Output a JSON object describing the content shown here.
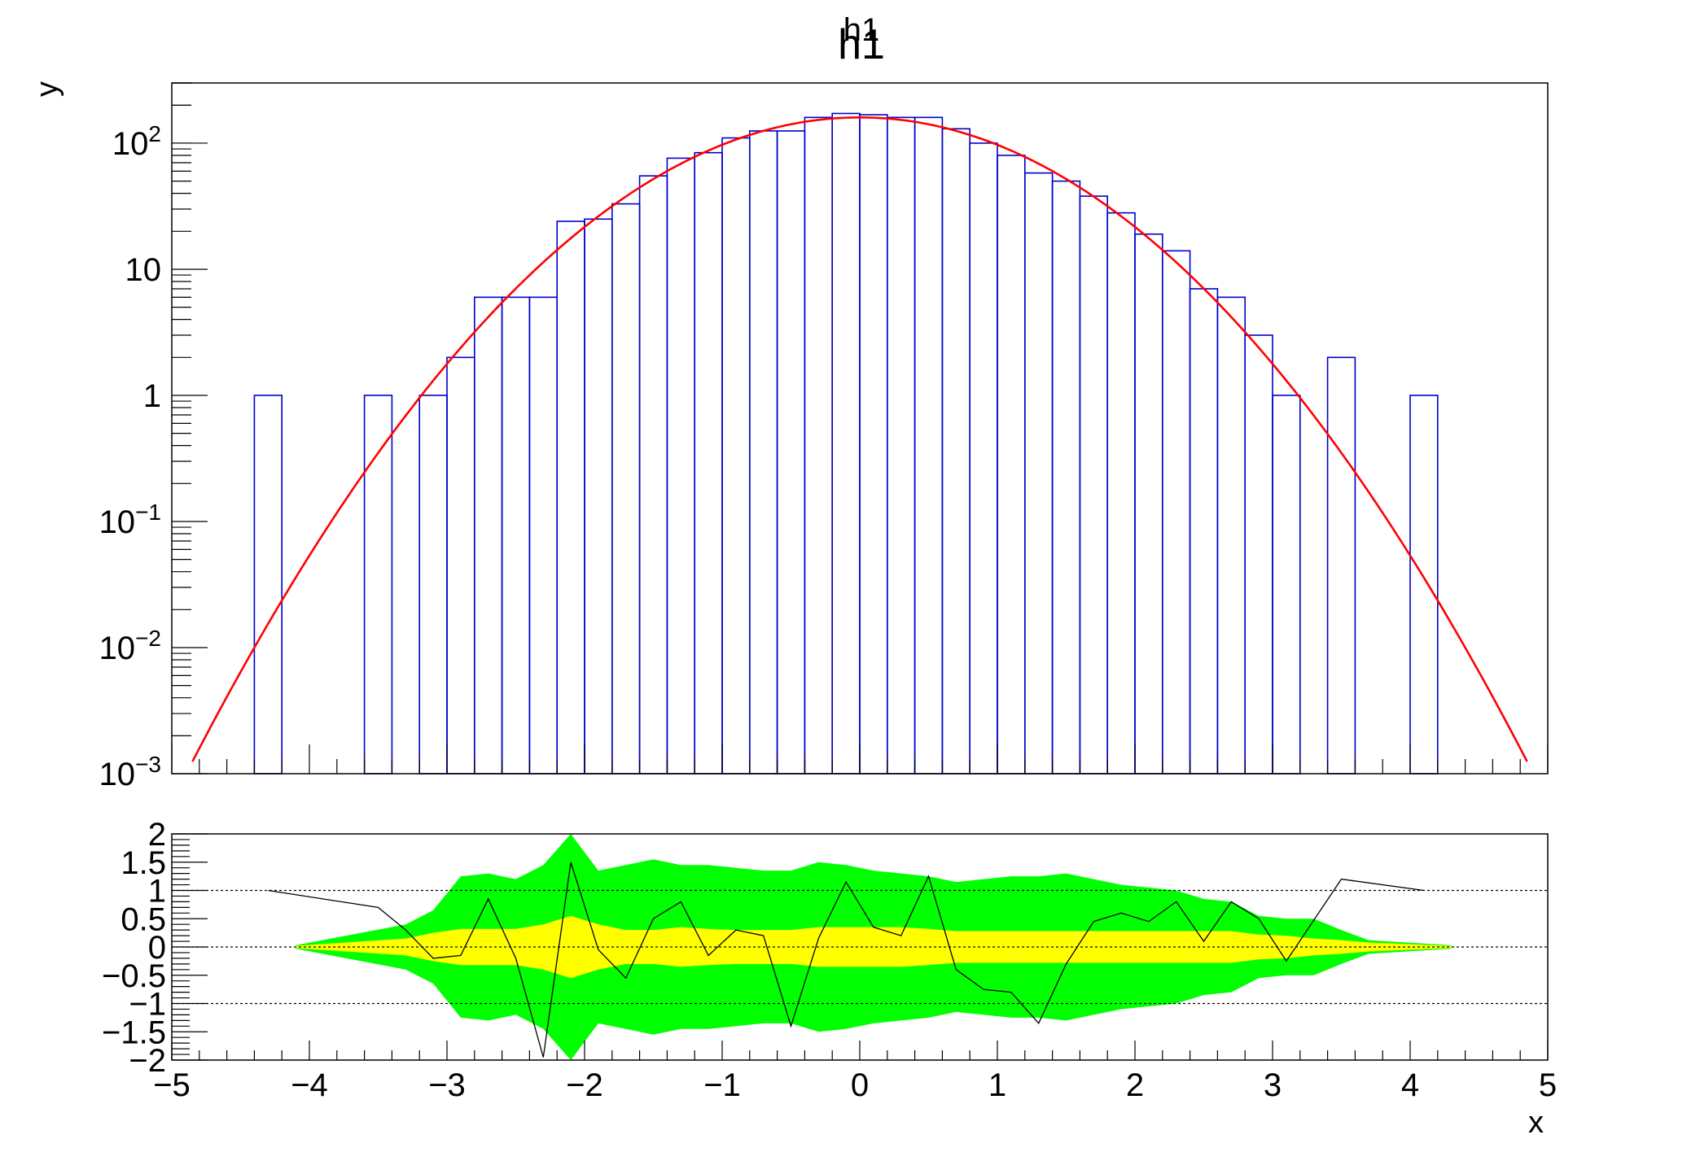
{
  "window": {
    "title_overlay": "h1",
    "title": "h1"
  },
  "chart_data": [
    {
      "type": "histogram",
      "title": "h1",
      "ylabel": "y",
      "xlabel": "x",
      "xlim": [
        -5,
        5
      ],
      "ylim": [
        0.001,
        300
      ],
      "yscale": "log",
      "grid": false,
      "y_tick_labels": [
        {
          "value": 0.001,
          "base": "10",
          "exp": "−3"
        },
        {
          "value": 0.01,
          "base": "10",
          "exp": "−2"
        },
        {
          "value": 0.1,
          "base": "10",
          "exp": "−1"
        },
        {
          "value": 1,
          "base": "1",
          "exp": ""
        },
        {
          "value": 10,
          "base": "10",
          "exp": ""
        },
        {
          "value": 100,
          "base": "10",
          "exp": "2"
        }
      ],
      "histogram": {
        "name": "h1",
        "color": "#0000cc",
        "bin_width": 0.2,
        "bins": [
          {
            "x": -4.4,
            "y": 1
          },
          {
            "x": -3.6,
            "y": 1
          },
          {
            "x": -3.2,
            "y": 1
          },
          {
            "x": -3.0,
            "y": 2
          },
          {
            "x": -2.8,
            "y": 6
          },
          {
            "x": -2.6,
            "y": 6
          },
          {
            "x": -2.4,
            "y": 6
          },
          {
            "x": -2.2,
            "y": 24
          },
          {
            "x": -2.0,
            "y": 25
          },
          {
            "x": -1.8,
            "y": 33
          },
          {
            "x": -1.6,
            "y": 55
          },
          {
            "x": -1.4,
            "y": 76
          },
          {
            "x": -1.2,
            "y": 84
          },
          {
            "x": -1.0,
            "y": 110
          },
          {
            "x": -0.8,
            "y": 125
          },
          {
            "x": -0.6,
            "y": 125
          },
          {
            "x": -0.4,
            "y": 160
          },
          {
            "x": -0.2,
            "y": 172
          },
          {
            "x": 0.0,
            "y": 168
          },
          {
            "x": 0.2,
            "y": 160
          },
          {
            "x": 0.4,
            "y": 160
          },
          {
            "x": 0.6,
            "y": 130
          },
          {
            "x": 0.8,
            "y": 100
          },
          {
            "x": 1.0,
            "y": 80
          },
          {
            "x": 1.2,
            "y": 58
          },
          {
            "x": 1.4,
            "y": 50
          },
          {
            "x": 1.6,
            "y": 38
          },
          {
            "x": 1.8,
            "y": 28
          },
          {
            "x": 2.0,
            "y": 19
          },
          {
            "x": 2.2,
            "y": 14
          },
          {
            "x": 2.4,
            "y": 7
          },
          {
            "x": 2.6,
            "y": 6
          },
          {
            "x": 2.8,
            "y": 3
          },
          {
            "x": 3.0,
            "y": 1
          },
          {
            "x": 3.4,
            "y": 2
          },
          {
            "x": 4.0,
            "y": 1
          }
        ]
      },
      "fit": {
        "name": "gaus",
        "color": "#ff0000",
        "amplitude": 160,
        "mean": 0.0,
        "sigma": 1.0,
        "x_range": [
          -4.85,
          4.85
        ]
      }
    },
    {
      "type": "residual_band",
      "xlabel": "x",
      "xlim": [
        -5,
        5
      ],
      "ylim": [
        -2,
        2
      ],
      "y_tick_labels": [
        "2",
        "1.5",
        "1",
        "0.5",
        "0",
        "−0.5",
        "−1",
        "−1.5",
        "−2"
      ],
      "x_tick_labels": [
        "−5",
        "−4",
        "−3",
        "−2",
        "−1",
        "0",
        "1",
        "2",
        "3",
        "4",
        "5"
      ],
      "reference_lines": [
        1,
        0,
        -1
      ],
      "sigma2_band_color": "#00ff00",
      "sigma1_band_color": "#ffff00",
      "residual_color": "#000000",
      "bands": [
        {
          "x": -4.1,
          "s1": 0.02,
          "s2": 0.03
        },
        {
          "x": -3.3,
          "s1": 0.15,
          "s2": 0.4
        },
        {
          "x": -3.1,
          "s1": 0.25,
          "s2": 0.65
        },
        {
          "x": -2.9,
          "s1": 0.32,
          "s2": 1.25
        },
        {
          "x": -2.7,
          "s1": 0.32,
          "s2": 1.3
        },
        {
          "x": -2.5,
          "s1": 0.32,
          "s2": 1.2
        },
        {
          "x": -2.3,
          "s1": 0.4,
          "s2": 1.45
        },
        {
          "x": -2.1,
          "s1": 0.55,
          "s2": 2.1
        },
        {
          "x": -1.9,
          "s1": 0.4,
          "s2": 1.35
        },
        {
          "x": -1.7,
          "s1": 0.3,
          "s2": 1.45
        },
        {
          "x": -1.5,
          "s1": 0.3,
          "s2": 1.55
        },
        {
          "x": -1.3,
          "s1": 0.35,
          "s2": 1.45
        },
        {
          "x": -1.1,
          "s1": 0.32,
          "s2": 1.45
        },
        {
          "x": -0.9,
          "s1": 0.3,
          "s2": 1.4
        },
        {
          "x": -0.7,
          "s1": 0.3,
          "s2": 1.35
        },
        {
          "x": -0.5,
          "s1": 0.3,
          "s2": 1.35
        },
        {
          "x": -0.3,
          "s1": 0.35,
          "s2": 1.5
        },
        {
          "x": -0.1,
          "s1": 0.35,
          "s2": 1.45
        },
        {
          "x": 0.1,
          "s1": 0.35,
          "s2": 1.35
        },
        {
          "x": 0.3,
          "s1": 0.35,
          "s2": 1.3
        },
        {
          "x": 0.5,
          "s1": 0.32,
          "s2": 1.25
        },
        {
          "x": 0.7,
          "s1": 0.28,
          "s2": 1.15
        },
        {
          "x": 0.9,
          "s1": 0.28,
          "s2": 1.2
        },
        {
          "x": 1.1,
          "s1": 0.28,
          "s2": 1.25
        },
        {
          "x": 1.3,
          "s1": 0.28,
          "s2": 1.25
        },
        {
          "x": 1.5,
          "s1": 0.28,
          "s2": 1.3
        },
        {
          "x": 1.7,
          "s1": 0.28,
          "s2": 1.2
        },
        {
          "x": 1.9,
          "s1": 0.28,
          "s2": 1.1
        },
        {
          "x": 2.1,
          "s1": 0.28,
          "s2": 1.05
        },
        {
          "x": 2.3,
          "s1": 0.28,
          "s2": 1.0
        },
        {
          "x": 2.5,
          "s1": 0.28,
          "s2": 0.85
        },
        {
          "x": 2.7,
          "s1": 0.28,
          "s2": 0.8
        },
        {
          "x": 2.9,
          "s1": 0.22,
          "s2": 0.55
        },
        {
          "x": 3.1,
          "s1": 0.2,
          "s2": 0.5
        },
        {
          "x": 3.3,
          "s1": 0.15,
          "s2": 0.5
        },
        {
          "x": 3.5,
          "s1": 0.12,
          "s2": 0.3
        },
        {
          "x": 3.7,
          "s1": 0.08,
          "s2": 0.12
        },
        {
          "x": 4.3,
          "s1": 0.02,
          "s2": 0.03
        }
      ],
      "residuals": [
        {
          "x": -4.3,
          "y": 1.0
        },
        {
          "x": -3.5,
          "y": 0.7
        },
        {
          "x": -3.3,
          "y": 0.3
        },
        {
          "x": -3.1,
          "y": -0.2
        },
        {
          "x": -2.9,
          "y": -0.15
        },
        {
          "x": -2.7,
          "y": 0.85
        },
        {
          "x": -2.5,
          "y": -0.2
        },
        {
          "x": -2.3,
          "y": -1.95
        },
        {
          "x": -2.1,
          "y": 1.5
        },
        {
          "x": -1.9,
          "y": -0.05
        },
        {
          "x": -1.7,
          "y": -0.55
        },
        {
          "x": -1.5,
          "y": 0.5
        },
        {
          "x": -1.3,
          "y": 0.8
        },
        {
          "x": -1.1,
          "y": -0.15
        },
        {
          "x": -0.9,
          "y": 0.3
        },
        {
          "x": -0.7,
          "y": 0.2
        },
        {
          "x": -0.5,
          "y": -1.4
        },
        {
          "x": -0.3,
          "y": 0.15
        },
        {
          "x": -0.1,
          "y": 1.15
        },
        {
          "x": 0.1,
          "y": 0.35
        },
        {
          "x": 0.3,
          "y": 0.2
        },
        {
          "x": 0.5,
          "y": 1.25
        },
        {
          "x": 0.7,
          "y": -0.4
        },
        {
          "x": 0.9,
          "y": -0.75
        },
        {
          "x": 1.1,
          "y": -0.8
        },
        {
          "x": 1.3,
          "y": -1.35
        },
        {
          "x": 1.5,
          "y": -0.3
        },
        {
          "x": 1.7,
          "y": 0.45
        },
        {
          "x": 1.9,
          "y": 0.6
        },
        {
          "x": 2.1,
          "y": 0.45
        },
        {
          "x": 2.3,
          "y": 0.8
        },
        {
          "x": 2.5,
          "y": 0.1
        },
        {
          "x": 2.7,
          "y": 0.8
        },
        {
          "x": 2.9,
          "y": 0.5
        },
        {
          "x": 3.1,
          "y": -0.25
        },
        {
          "x": 3.5,
          "y": 1.2
        },
        {
          "x": 4.1,
          "y": 1.0
        }
      ]
    }
  ]
}
